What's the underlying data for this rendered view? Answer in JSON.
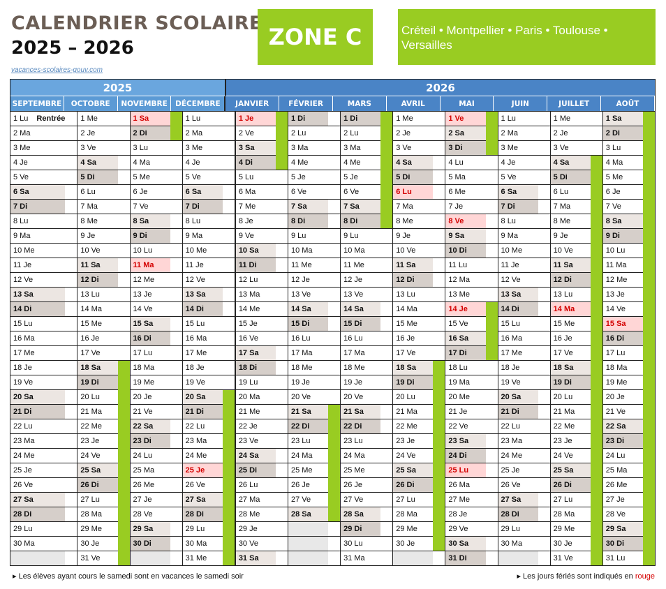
{
  "header": {
    "title": "CALENDRIER SCOLAIRE",
    "years": "2025 – 2026",
    "link": "vacances-scolaires-gouv.com",
    "zone": "ZONE C",
    "cities": "Créteil • Montpellier • Paris • Toulouse • Versailles"
  },
  "colors": {
    "vacation": "#99cc22",
    "holiday": "#d40000",
    "year2025": "#6aa6de",
    "year2026": "#4a84c6"
  },
  "year_headers": [
    {
      "label": "2025",
      "span": 4
    },
    {
      "label": "2026",
      "span": 8
    }
  ],
  "rentree_label": "Rentrée",
  "months": [
    {
      "name": "SEPTEMBRE",
      "days": [
        "Lu",
        "Ma",
        "Me",
        "Je",
        "Ve",
        "Sa",
        "Di",
        "Lu",
        "Ma",
        "Me",
        "Je",
        "Ve",
        "Sa",
        "Di",
        "Lu",
        "Ma",
        "Me",
        "Je",
        "Ve",
        "Sa",
        "Di",
        "Lu",
        "Ma",
        "Me",
        "Je",
        "Ve",
        "Sa",
        "Di",
        "Lu",
        "Ma"
      ],
      "holidays": [],
      "vacations": [],
      "rentree": 1
    },
    {
      "name": "OCTOBRE",
      "days": [
        "Me",
        "Je",
        "Ve",
        "Sa",
        "Di",
        "Lu",
        "Ma",
        "Me",
        "Je",
        "Ve",
        "Sa",
        "Di",
        "Lu",
        "Ma",
        "Me",
        "Je",
        "Ve",
        "Sa",
        "Di",
        "Lu",
        "Ma",
        "Me",
        "Je",
        "Ve",
        "Sa",
        "Di",
        "Lu",
        "Ma",
        "Me",
        "Je",
        "Ve"
      ],
      "holidays": [],
      "vacations": [
        [
          18,
          31
        ]
      ]
    },
    {
      "name": "NOVEMBRE",
      "days": [
        "Sa",
        "Di",
        "Lu",
        "Ma",
        "Me",
        "Je",
        "Ve",
        "Sa",
        "Di",
        "Lu",
        "Ma",
        "Me",
        "Je",
        "Ve",
        "Sa",
        "Di",
        "Lu",
        "Ma",
        "Me",
        "Je",
        "Ve",
        "Sa",
        "Di",
        "Lu",
        "Ma",
        "Me",
        "Je",
        "Ve",
        "Sa",
        "Di"
      ],
      "holidays": [
        1,
        11
      ],
      "vacations": [
        [
          1,
          2
        ]
      ]
    },
    {
      "name": "DÉCEMBRE",
      "days": [
        "Lu",
        "Ma",
        "Me",
        "Je",
        "Ve",
        "Sa",
        "Di",
        "Lu",
        "Ma",
        "Me",
        "Je",
        "Ve",
        "Sa",
        "Di",
        "Lu",
        "Ma",
        "Me",
        "Je",
        "Ve",
        "Sa",
        "Di",
        "Lu",
        "Ma",
        "Me",
        "Je",
        "Ve",
        "Sa",
        "Di",
        "Lu",
        "Ma",
        "Me"
      ],
      "holidays": [
        25
      ],
      "vacations": [
        [
          20,
          31
        ]
      ]
    },
    {
      "name": "JANVIER",
      "days": [
        "Je",
        "Ve",
        "Sa",
        "Di",
        "Lu",
        "Ma",
        "Me",
        "Je",
        "Ve",
        "Sa",
        "Di",
        "Lu",
        "Ma",
        "Me",
        "Je",
        "Ve",
        "Sa",
        "Di",
        "Lu",
        "Ma",
        "Me",
        "Je",
        "Ve",
        "Sa",
        "Di",
        "Lu",
        "Ma",
        "Me",
        "Je",
        "Ve",
        "Sa"
      ],
      "holidays": [
        1
      ],
      "vacations": [
        [
          1,
          4
        ]
      ]
    },
    {
      "name": "FÉVRIER",
      "days": [
        "Di",
        "Lu",
        "Ma",
        "Me",
        "Je",
        "Ve",
        "Sa",
        "Di",
        "Lu",
        "Ma",
        "Me",
        "Je",
        "Ve",
        "Sa",
        "Di",
        "Lu",
        "Ma",
        "Me",
        "Je",
        "Ve",
        "Sa",
        "Di",
        "Lu",
        "Ma",
        "Me",
        "Je",
        "Ve",
        "Sa"
      ],
      "holidays": [],
      "vacations": [
        [
          21,
          28
        ]
      ]
    },
    {
      "name": "MARS",
      "days": [
        "Di",
        "Lu",
        "Ma",
        "Me",
        "Je",
        "Ve",
        "Sa",
        "Di",
        "Lu",
        "Ma",
        "Me",
        "Je",
        "Ve",
        "Sa",
        "Di",
        "Lu",
        "Ma",
        "Me",
        "Je",
        "Ve",
        "Sa",
        "Di",
        "Lu",
        "Ma",
        "Me",
        "Je",
        "Ve",
        "Sa",
        "Di",
        "Lu",
        "Ma"
      ],
      "holidays": [],
      "vacations": [
        [
          1,
          8
        ]
      ]
    },
    {
      "name": "AVRIL",
      "days": [
        "Me",
        "Je",
        "Ve",
        "Sa",
        "Di",
        "Lu",
        "Ma",
        "Me",
        "Je",
        "Ve",
        "Sa",
        "Di",
        "Lu",
        "Ma",
        "Me",
        "Je",
        "Ve",
        "Sa",
        "Di",
        "Lu",
        "Ma",
        "Me",
        "Je",
        "Ve",
        "Sa",
        "Di",
        "Lu",
        "Ma",
        "Me",
        "Je"
      ],
      "holidays": [
        6
      ],
      "vacations": [
        [
          18,
          30
        ]
      ]
    },
    {
      "name": "MAI",
      "days": [
        "Ve",
        "Sa",
        "Di",
        "Lu",
        "Ma",
        "Me",
        "Je",
        "Ve",
        "Sa",
        "Di",
        "Lu",
        "Ma",
        "Me",
        "Je",
        "Ve",
        "Sa",
        "Di",
        "Lu",
        "Ma",
        "Me",
        "Je",
        "Ve",
        "Sa",
        "Di",
        "Lu",
        "Ma",
        "Me",
        "Je",
        "Ve",
        "Sa",
        "Di"
      ],
      "holidays": [
        1,
        8,
        14,
        25
      ],
      "vacations": [
        [
          1,
          3
        ],
        [
          14,
          17
        ]
      ]
    },
    {
      "name": "JUIN",
      "days": [
        "Lu",
        "Ma",
        "Me",
        "Je",
        "Ve",
        "Sa",
        "Di",
        "Lu",
        "Ma",
        "Me",
        "Je",
        "Ve",
        "Sa",
        "Di",
        "Lu",
        "Ma",
        "Me",
        "Je",
        "Ve",
        "Sa",
        "Di",
        "Lu",
        "Ma",
        "Me",
        "Je",
        "Ve",
        "Sa",
        "Di",
        "Lu",
        "Ma"
      ],
      "holidays": [],
      "vacations": []
    },
    {
      "name": "JUILLET",
      "days": [
        "Me",
        "Je",
        "Ve",
        "Sa",
        "Di",
        "Lu",
        "Ma",
        "Me",
        "Je",
        "Ve",
        "Sa",
        "Di",
        "Lu",
        "Ma",
        "Me",
        "Je",
        "Ve",
        "Sa",
        "Di",
        "Lu",
        "Ma",
        "Me",
        "Je",
        "Ve",
        "Sa",
        "Di",
        "Lu",
        "Ma",
        "Me",
        "Je",
        "Ve"
      ],
      "holidays": [
        14
      ],
      "vacations": [
        [
          4,
          31
        ]
      ]
    },
    {
      "name": "AOÛT",
      "days": [
        "Sa",
        "Di",
        "Lu",
        "Ma",
        "Me",
        "Je",
        "Ve",
        "Sa",
        "Di",
        "Lu",
        "Ma",
        "Me",
        "Je",
        "Ve",
        "Sa",
        "Di",
        "Lu",
        "Ma",
        "Me",
        "Je",
        "Ve",
        "Sa",
        "Di",
        "Lu",
        "Ma",
        "Me",
        "Je",
        "Ve",
        "Sa",
        "Di",
        "Lu"
      ],
      "holidays": [
        15
      ],
      "vacations": [
        [
          1,
          31
        ]
      ]
    }
  ],
  "footer": {
    "left": "Les élèves ayant cours le samedi sont en vacances le samedi soir",
    "right_prefix": "Les jours fériés sont indiqués en ",
    "right_red": "rouge"
  }
}
